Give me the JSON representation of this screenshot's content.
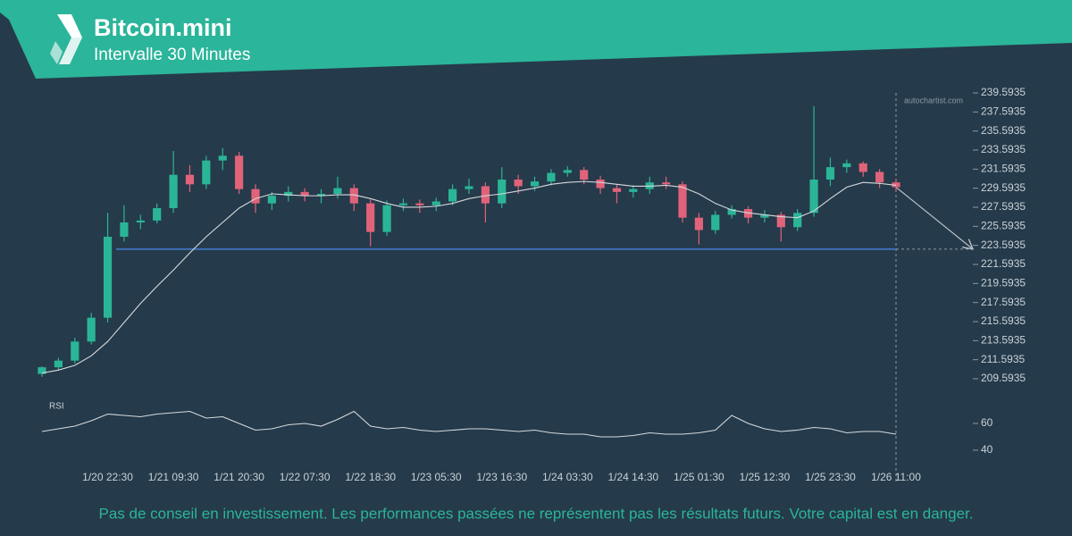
{
  "header": {
    "title": "Bitcoin.mini",
    "subtitle": "Intervalle 30 Minutes"
  },
  "watermark": "autochartist.com",
  "disclaimer": "Pas de conseil en investissement. Les performances passées ne représentent pas les résultats futurs. Votre capital est en danger.",
  "chart_data": {
    "type": "candlestick",
    "categories": [
      null,
      null,
      null,
      null,
      "1/20 22:30",
      null,
      null,
      null,
      "1/21 09:30",
      null,
      null,
      null,
      "1/21 20:30",
      null,
      null,
      null,
      "1/22 07:30",
      null,
      null,
      null,
      "1/22 18:30",
      null,
      null,
      null,
      "1/23 05:30",
      null,
      null,
      null,
      "1/23 16:30",
      null,
      null,
      null,
      "1/24 03:30",
      null,
      null,
      null,
      "1/24 14:30",
      null,
      null,
      null,
      "1/25 01:30",
      null,
      null,
      null,
      "1/25 12:30",
      null,
      null,
      null,
      "1/25 23:30",
      null,
      null,
      null,
      "1/26 11:00"
    ],
    "open": [
      210.1,
      210.8,
      211.5,
      213.5,
      216.0,
      224.5,
      226.0,
      226.2,
      227.5,
      231.0,
      230.0,
      232.5,
      233.0,
      229.5,
      228.0,
      228.8,
      229.2,
      228.8,
      229.0,
      229.6,
      228.0,
      225.0,
      227.8,
      228.0,
      227.8,
      228.2,
      229.5,
      229.8,
      228.0,
      230.5,
      229.8,
      230.3,
      231.2,
      231.5,
      230.5,
      229.6,
      229.2,
      229.5,
      230.2,
      230.0,
      226.5,
      225.2,
      226.8,
      227.4,
      226.5,
      226.8,
      225.5,
      227.0,
      230.5,
      231.8,
      232.2,
      231.3,
      230.2
    ],
    "high": [
      210.9,
      211.8,
      213.9,
      216.5,
      227.0,
      227.8,
      226.8,
      228.0,
      233.5,
      232.0,
      233.0,
      233.8,
      233.4,
      230.0,
      229.2,
      229.8,
      229.6,
      229.5,
      230.8,
      230.0,
      228.4,
      228.3,
      228.5,
      228.4,
      228.6,
      230.0,
      230.6,
      230.2,
      231.8,
      231.0,
      230.8,
      231.6,
      231.9,
      231.8,
      230.9,
      230.0,
      229.9,
      230.8,
      230.8,
      230.3,
      227.0,
      227.2,
      227.8,
      227.7,
      227.3,
      227.1,
      227.4,
      238.2,
      232.8,
      232.6,
      232.4,
      231.6,
      230.6
    ],
    "low": [
      209.8,
      210.5,
      211.2,
      213.2,
      215.5,
      224.0,
      225.3,
      225.9,
      227.0,
      229.2,
      229.5,
      231.5,
      229.0,
      227.0,
      227.3,
      228.2,
      228.2,
      228.0,
      228.5,
      227.2,
      223.5,
      224.6,
      227.2,
      227.0,
      227.2,
      227.8,
      229.0,
      226.0,
      227.5,
      229.0,
      229.3,
      229.9,
      230.8,
      230.0,
      229.0,
      228.0,
      228.6,
      229.0,
      229.5,
      226.0,
      223.7,
      224.8,
      226.4,
      225.9,
      226.0,
      224.0,
      225.1,
      226.6,
      229.8,
      231.2,
      230.8,
      229.6,
      229.2
    ],
    "close": [
      210.8,
      211.5,
      213.5,
      216.0,
      224.5,
      226.0,
      226.2,
      227.5,
      231.0,
      230.0,
      232.5,
      233.0,
      229.5,
      228.0,
      228.8,
      229.2,
      228.8,
      229.0,
      229.6,
      228.0,
      225.0,
      227.8,
      228.0,
      227.8,
      228.2,
      229.5,
      229.8,
      228.0,
      230.5,
      229.8,
      230.3,
      231.2,
      231.5,
      230.5,
      229.6,
      229.2,
      229.5,
      230.2,
      230.0,
      226.5,
      225.2,
      226.8,
      227.4,
      226.5,
      226.8,
      225.5,
      227.0,
      230.5,
      231.8,
      232.2,
      231.3,
      230.2,
      229.7
    ],
    "up_color": "#2bb597",
    "down_color": "#e0637a",
    "ylim": [
      209.5935,
      239.5935
    ],
    "yticks": [
      239.5935,
      237.5935,
      235.5935,
      233.5935,
      231.5935,
      229.5935,
      227.5935,
      225.5935,
      223.5935,
      221.5935,
      219.5935,
      217.5935,
      215.5935,
      213.5935,
      211.5935,
      209.5935
    ],
    "moving_average": {
      "color": "#d6dadd",
      "values": [
        210.2,
        210.5,
        211.0,
        212.0,
        213.5,
        215.5,
        217.5,
        219.3,
        221.0,
        222.8,
        224.5,
        226.0,
        227.5,
        228.5,
        229.0,
        228.9,
        228.8,
        228.8,
        228.9,
        228.9,
        228.5,
        228.0,
        227.6,
        227.6,
        227.7,
        228.0,
        228.5,
        228.8,
        229.0,
        229.3,
        229.6,
        230.0,
        230.2,
        230.3,
        230.2,
        230.0,
        229.8,
        229.8,
        229.9,
        229.7,
        229.0,
        228.0,
        227.3,
        227.0,
        226.8,
        226.6,
        226.5,
        227.2,
        228.5,
        229.7,
        230.2,
        230.1,
        229.9
      ]
    },
    "support": {
      "value": 223.2,
      "color": "#3d6fb6"
    },
    "rsi": {
      "label": "RSI",
      "color": "#d6dadd",
      "ylim": [
        30,
        80
      ],
      "yticks": [
        60,
        40
      ],
      "values": [
        54,
        56,
        58,
        62,
        67,
        66,
        65,
        67,
        68,
        69,
        64,
        65,
        60,
        55,
        56,
        59,
        60,
        58,
        63,
        69,
        58,
        56,
        57,
        55,
        54,
        55,
        56,
        56,
        55,
        54,
        55,
        53,
        52,
        52,
        50,
        50,
        51,
        53,
        52,
        52,
        53,
        55,
        66,
        60,
        56,
        54,
        55,
        57,
        56,
        53,
        54,
        54,
        52
      ]
    }
  }
}
